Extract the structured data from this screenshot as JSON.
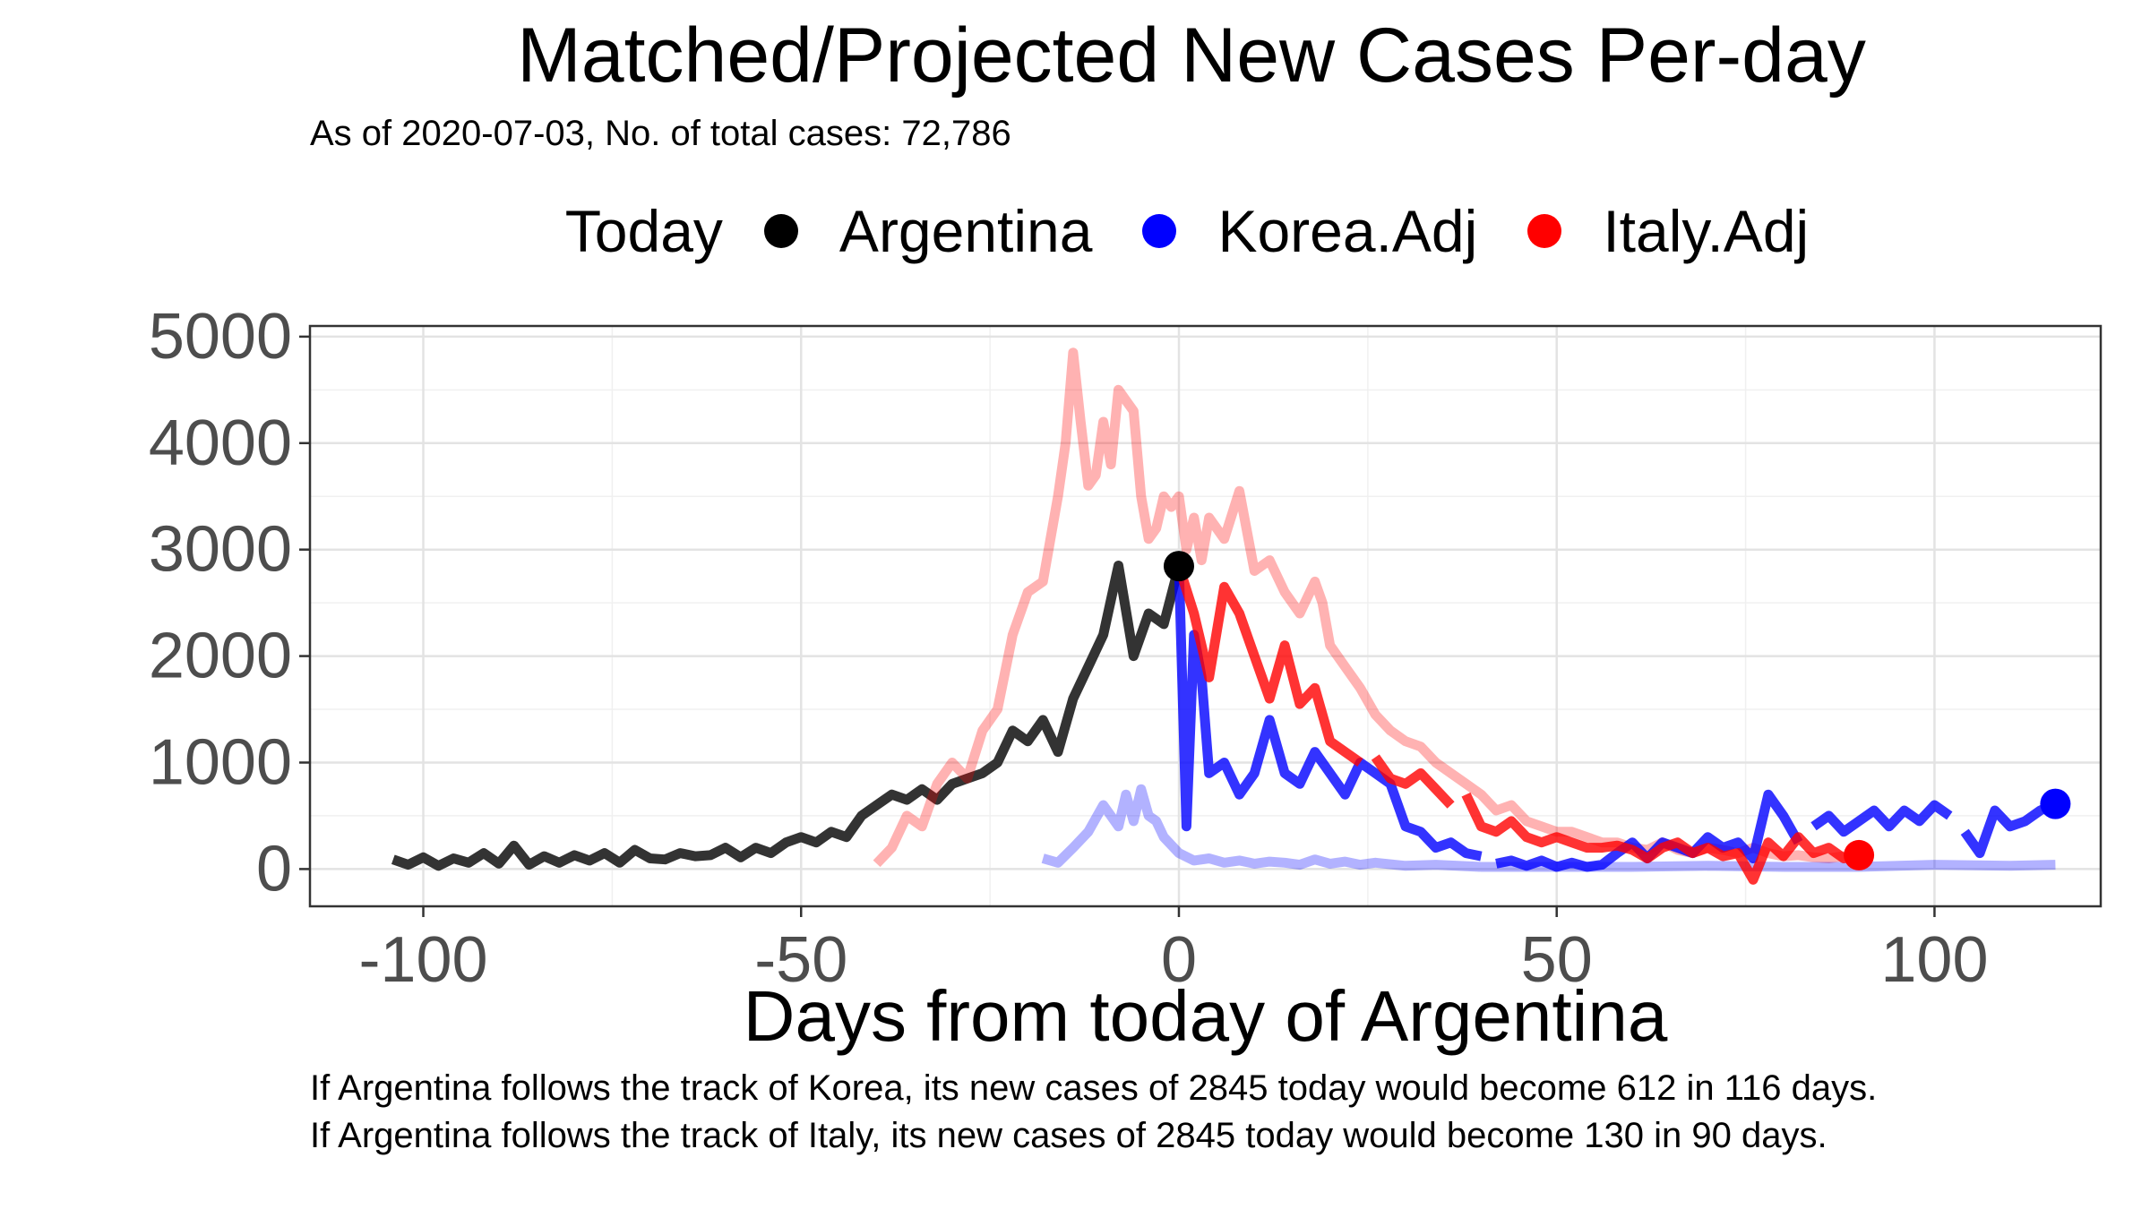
{
  "chart_data": {
    "type": "line",
    "title": "Matched/Projected New Cases Per-day",
    "subtitle": "As of 2020-07-03, No. of total cases: 72,786",
    "xlabel": "Days from today of Argentina",
    "ylabel": "",
    "xlim": [
      -115,
      122
    ],
    "ylim": [
      -350,
      5100
    ],
    "x_ticks": [
      -100,
      -50,
      0,
      50,
      100
    ],
    "y_ticks": [
      0,
      1000,
      2000,
      3000,
      4000,
      5000
    ],
    "grid": true,
    "legend": {
      "title": "Today",
      "placement": "top",
      "entries": [
        {
          "label": "Argentina",
          "color": "#000000"
        },
        {
          "label": "Korea.Adj",
          "color": "#0000ff"
        },
        {
          "label": "Italy.Adj",
          "color": "#ff0000"
        }
      ]
    },
    "series": [
      {
        "name": "Argentina",
        "color": "#333333",
        "opacity": 1,
        "points": [
          [
            -104,
            90
          ],
          [
            -102,
            40
          ],
          [
            -100,
            110
          ],
          [
            -98,
            30
          ],
          [
            -96,
            100
          ],
          [
            -94,
            60
          ],
          [
            -92,
            150
          ],
          [
            -90,
            50
          ],
          [
            -88,
            220
          ],
          [
            -86,
            40
          ],
          [
            -84,
            120
          ],
          [
            -82,
            60
          ],
          [
            -80,
            130
          ],
          [
            -78,
            80
          ],
          [
            -76,
            150
          ],
          [
            -74,
            60
          ],
          [
            -72,
            180
          ],
          [
            -70,
            100
          ],
          [
            -68,
            90
          ],
          [
            -66,
            150
          ],
          [
            -64,
            120
          ],
          [
            -62,
            130
          ],
          [
            -60,
            200
          ],
          [
            -58,
            110
          ],
          [
            -56,
            200
          ],
          [
            -54,
            150
          ],
          [
            -52,
            250
          ],
          [
            -50,
            300
          ],
          [
            -48,
            250
          ],
          [
            -46,
            350
          ],
          [
            -44,
            300
          ],
          [
            -42,
            500
          ],
          [
            -40,
            600
          ],
          [
            -38,
            700
          ],
          [
            -36,
            650
          ],
          [
            -34,
            750
          ],
          [
            -32,
            650
          ],
          [
            -30,
            800
          ],
          [
            -28,
            850
          ],
          [
            -26,
            900
          ],
          [
            -24,
            1000
          ],
          [
            -22,
            1300
          ],
          [
            -20,
            1200
          ],
          [
            -18,
            1400
          ],
          [
            -16,
            1100
          ],
          [
            -14,
            1600
          ],
          [
            -12,
            1900
          ],
          [
            -10,
            2200
          ],
          [
            -8,
            2850
          ],
          [
            -6,
            2000
          ],
          [
            -4,
            2400
          ],
          [
            -2,
            2300
          ],
          [
            0,
            2845
          ]
        ]
      },
      {
        "name": "Italy (matched)",
        "color": "#ff0000",
        "opacity": 0.3,
        "points": [
          [
            -40,
            50
          ],
          [
            -38,
            200
          ],
          [
            -36,
            500
          ],
          [
            -34,
            400
          ],
          [
            -32,
            800
          ],
          [
            -30,
            1000
          ],
          [
            -28,
            850
          ],
          [
            -26,
            1300
          ],
          [
            -24,
            1500
          ],
          [
            -22,
            2200
          ],
          [
            -20,
            2600
          ],
          [
            -18,
            2700
          ],
          [
            -16,
            3500
          ],
          [
            -15,
            4000
          ],
          [
            -14,
            4850
          ],
          [
            -13,
            4200
          ],
          [
            -12,
            3600
          ],
          [
            -11,
            3700
          ],
          [
            -10,
            4200
          ],
          [
            -9,
            3800
          ],
          [
            -8,
            4500
          ],
          [
            -7,
            4400
          ],
          [
            -6,
            4300
          ],
          [
            -5,
            3500
          ],
          [
            -4,
            3100
          ],
          [
            -3,
            3200
          ],
          [
            -2,
            3500
          ],
          [
            -1,
            3400
          ],
          [
            0,
            3500
          ],
          [
            1,
            3000
          ],
          [
            2,
            3300
          ],
          [
            3,
            2900
          ],
          [
            4,
            3300
          ],
          [
            6,
            3100
          ],
          [
            8,
            3550
          ],
          [
            10,
            2800
          ],
          [
            12,
            2900
          ],
          [
            14,
            2600
          ],
          [
            16,
            2400
          ],
          [
            18,
            2700
          ],
          [
            19,
            2500
          ],
          [
            20,
            2100
          ],
          [
            22,
            1900
          ],
          [
            24,
            1700
          ],
          [
            26,
            1450
          ],
          [
            28,
            1300
          ],
          [
            30,
            1200
          ],
          [
            32,
            1150
          ],
          [
            34,
            1000
          ],
          [
            36,
            900
          ],
          [
            38,
            800
          ],
          [
            40,
            700
          ],
          [
            42,
            550
          ],
          [
            44,
            600
          ],
          [
            46,
            450
          ],
          [
            48,
            400
          ],
          [
            50,
            350
          ],
          [
            52,
            350
          ],
          [
            54,
            300
          ],
          [
            56,
            250
          ],
          [
            58,
            250
          ],
          [
            60,
            200
          ],
          [
            62,
            180
          ],
          [
            64,
            250
          ],
          [
            66,
            180
          ],
          [
            68,
            150
          ],
          [
            70,
            200
          ],
          [
            72,
            180
          ],
          [
            74,
            150
          ],
          [
            76,
            200
          ],
          [
            78,
            150
          ],
          [
            80,
            120
          ],
          [
            82,
            130
          ],
          [
            84,
            110
          ],
          [
            86,
            100
          ],
          [
            88,
            120
          ],
          [
            90,
            130
          ]
        ]
      },
      {
        "name": "Korea (matched)",
        "color": "#0000ff",
        "opacity": 0.3,
        "points": [
          [
            -18,
            100
          ],
          [
            -16,
            60
          ],
          [
            -14,
            200
          ],
          [
            -12,
            350
          ],
          [
            -10,
            600
          ],
          [
            -8,
            400
          ],
          [
            -7,
            700
          ],
          [
            -6,
            450
          ],
          [
            -5,
            750
          ],
          [
            -4,
            500
          ],
          [
            -3,
            450
          ],
          [
            -2,
            300
          ],
          [
            0,
            150
          ],
          [
            2,
            80
          ],
          [
            4,
            100
          ],
          [
            6,
            60
          ],
          [
            8,
            80
          ],
          [
            10,
            50
          ],
          [
            12,
            70
          ],
          [
            14,
            60
          ],
          [
            16,
            40
          ],
          [
            18,
            90
          ],
          [
            20,
            50
          ],
          [
            22,
            70
          ],
          [
            24,
            40
          ],
          [
            26,
            60
          ],
          [
            30,
            30
          ],
          [
            34,
            40
          ],
          [
            40,
            20
          ],
          [
            50,
            20
          ],
          [
            60,
            20
          ],
          [
            70,
            30
          ],
          [
            80,
            20
          ],
          [
            90,
            20
          ],
          [
            100,
            40
          ],
          [
            110,
            30
          ],
          [
            116,
            40
          ]
        ]
      },
      {
        "name": "Korea.Adj",
        "color": "#0000ff",
        "opacity": 0.8,
        "points": [
          [
            0,
            2845
          ],
          [
            1,
            400
          ],
          [
            2,
            2200
          ],
          [
            3,
            1800
          ],
          [
            4,
            900
          ],
          [
            6,
            1000
          ],
          [
            8,
            700
          ],
          [
            10,
            900
          ],
          [
            12,
            1400
          ],
          [
            14,
            900
          ],
          [
            16,
            800
          ],
          [
            18,
            1100
          ],
          [
            20,
            900
          ],
          [
            22,
            700
          ],
          [
            24,
            1000
          ],
          [
            26,
            900
          ],
          [
            28,
            800
          ],
          [
            30,
            400
          ],
          [
            32,
            350
          ],
          [
            34,
            200
          ],
          [
            36,
            250
          ],
          [
            38,
            150
          ],
          [
            40,
            120
          ],
          null,
          [
            42,
            50
          ],
          [
            44,
            80
          ],
          [
            46,
            30
          ],
          [
            48,
            80
          ],
          [
            50,
            20
          ],
          [
            52,
            60
          ],
          [
            54,
            20
          ],
          [
            56,
            40
          ],
          [
            58,
            150
          ],
          [
            60,
            250
          ],
          [
            62,
            100
          ],
          [
            64,
            250
          ],
          [
            66,
            200
          ],
          [
            68,
            150
          ],
          [
            70,
            300
          ],
          [
            72,
            200
          ],
          [
            74,
            250
          ],
          [
            76,
            100
          ],
          [
            78,
            700
          ],
          [
            80,
            500
          ],
          [
            82,
            250
          ],
          null,
          [
            84,
            400
          ],
          [
            86,
            500
          ],
          [
            88,
            350
          ],
          [
            90,
            450
          ],
          [
            92,
            550
          ],
          [
            94,
            400
          ],
          [
            96,
            550
          ],
          [
            98,
            450
          ],
          [
            100,
            600
          ],
          [
            102,
            500
          ],
          null,
          [
            104,
            350
          ],
          [
            106,
            150
          ],
          [
            108,
            550
          ],
          [
            110,
            400
          ],
          [
            112,
            450
          ],
          [
            114,
            550
          ],
          [
            116,
            612
          ]
        ]
      },
      {
        "name": "Italy.Adj",
        "color": "#ff0000",
        "opacity": 0.8,
        "points": [
          [
            0,
            2845
          ],
          [
            2,
            2400
          ],
          [
            4,
            1800
          ],
          [
            6,
            2650
          ],
          [
            8,
            2400
          ],
          [
            10,
            2000
          ],
          [
            12,
            1600
          ],
          [
            14,
            2100
          ],
          [
            16,
            1550
          ],
          [
            18,
            1700
          ],
          [
            20,
            1200
          ],
          [
            22,
            1100
          ],
          [
            24,
            1000
          ],
          null,
          [
            26,
            1050
          ],
          [
            28,
            850
          ],
          [
            30,
            800
          ],
          [
            32,
            900
          ],
          [
            34,
            750
          ],
          [
            36,
            600
          ],
          null,
          [
            38,
            700
          ],
          [
            40,
            400
          ],
          [
            42,
            350
          ],
          [
            44,
            450
          ],
          [
            46,
            300
          ],
          [
            48,
            250
          ],
          [
            50,
            300
          ],
          [
            52,
            250
          ],
          [
            54,
            200
          ],
          [
            56,
            200
          ],
          [
            58,
            220
          ],
          [
            60,
            180
          ],
          [
            62,
            100
          ],
          [
            64,
            200
          ],
          [
            66,
            250
          ],
          [
            68,
            150
          ],
          [
            70,
            200
          ],
          [
            72,
            120
          ],
          [
            74,
            150
          ],
          [
            76,
            -100
          ],
          [
            78,
            250
          ],
          [
            80,
            120
          ],
          [
            82,
            300
          ],
          [
            84,
            150
          ],
          [
            86,
            200
          ],
          [
            88,
            100
          ],
          [
            90,
            130
          ]
        ]
      }
    ],
    "today_markers": [
      {
        "label": "Argentina",
        "x": 0,
        "y": 2845,
        "color": "#000000"
      },
      {
        "label": "Korea.Adj",
        "x": 116,
        "y": 612,
        "color": "#0000ff"
      },
      {
        "label": "Italy.Adj",
        "x": 90,
        "y": 130,
        "color": "#ff0000"
      }
    ]
  },
  "captions": [
    "If Argentina follows the track of Korea, its new cases of 2845 today would become 612 in 116 days.",
    "If Argentina follows the track of Italy, its new cases of 2845 today would become 130 in 90 days."
  ]
}
